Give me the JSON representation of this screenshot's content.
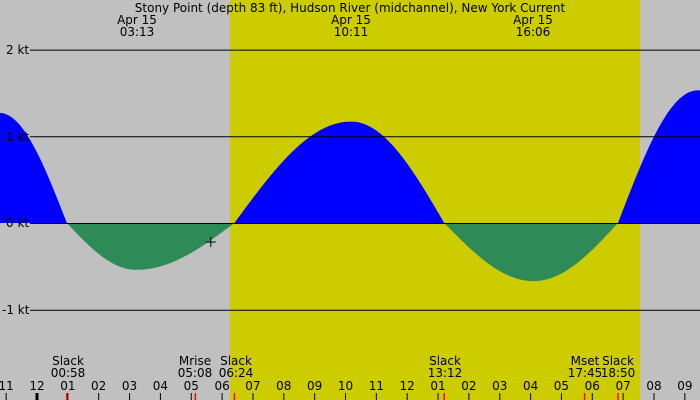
{
  "chart_data": {
    "type": "area",
    "title": "Stony Point (depth 83 ft), Hudson River (midchannel), New York Current",
    "ylabel": "kt",
    "ylim": [
      -1.6,
      2.6
    ],
    "y_ticks": [
      {
        "label": "2 kt",
        "value": 2
      },
      {
        "label": "1 kt",
        "value": 1
      },
      {
        "label": "0 kt",
        "value": 0
      },
      {
        "label": "-1 kt",
        "value": -1
      }
    ],
    "grid": true,
    "colors": {
      "background_night": "#c0c0c0",
      "background_day": "#cccc00",
      "flood": "#0000ff",
      "ebb": "#2e8b57",
      "event_marker": "#ff0000"
    },
    "daylight_band": {
      "start": "06:24",
      "end": "19:38"
    },
    "x_hour_ticks": [
      "11",
      "12",
      "01",
      "02",
      "03",
      "04",
      "05",
      "06",
      "07",
      "08",
      "09",
      "10",
      "11",
      "12",
      "01",
      "02",
      "03",
      "04",
      "05",
      "06",
      "07",
      "08",
      "09"
    ],
    "top_labels": [
      {
        "date": "Apr 15",
        "time": "03:13"
      },
      {
        "date": "Apr 15",
        "time": "10:11"
      },
      {
        "date": "Apr 15",
        "time": "16:06"
      }
    ],
    "events": [
      {
        "label": "Slack",
        "time": "00:58"
      },
      {
        "label": "Mrise",
        "time": "05:08"
      },
      {
        "label": "Slack",
        "time": "06:24"
      },
      {
        "label": "Slack",
        "time": "13:12"
      },
      {
        "label": "Mset",
        "time": "17:45"
      },
      {
        "label": "Slack",
        "time": "18:50"
      }
    ],
    "series": [
      {
        "name": "current",
        "points": [
          {
            "time": "22:47",
            "value": 1.27
          },
          {
            "time": "00:58",
            "value": 0.0
          },
          {
            "time": "03:13",
            "value": -0.54
          },
          {
            "time": "06:24",
            "value": 0.0
          },
          {
            "time": "10:11",
            "value": 1.17
          },
          {
            "time": "13:12",
            "value": 0.0
          },
          {
            "time": "16:06",
            "value": -0.67
          },
          {
            "time": "18:50",
            "value": 0.0
          },
          {
            "time": "21:25",
            "value": 1.53
          }
        ]
      }
    ],
    "current_time_marker": {
      "time": "05:38",
      "symbol": "+"
    }
  }
}
